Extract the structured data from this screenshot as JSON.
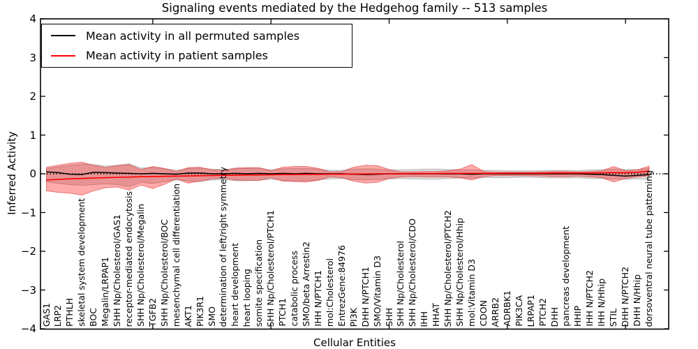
{
  "figure": {
    "title": "Signaling events mediated by the Hedgehog family -- 513 samples",
    "xlabel": "Cellular Entities",
    "ylabel": "Inferred Activity",
    "background": "#ffffff"
  },
  "legend": {
    "items": [
      {
        "label": "Mean activity in all permuted samples",
        "color": "#000000"
      },
      {
        "label": "Mean activity in patient samples",
        "color": "#ff0000"
      }
    ]
  },
  "chart_data": {
    "type": "line",
    "title": "Signaling events mediated by the Hedgehog family -- 513 samples",
    "xlabel": "Cellular Entities",
    "ylabel": "Inferred Activity",
    "ylim": [
      -4,
      4
    ],
    "grid": false,
    "legend_position": "upper left",
    "yticks": [
      {
        "value": 4,
        "label": "4"
      },
      {
        "value": 3,
        "label": "3"
      },
      {
        "value": 2,
        "label": "2"
      },
      {
        "value": 1,
        "label": "1"
      },
      {
        "value": 0,
        "label": "0"
      },
      {
        "value": -1,
        "label": "−1"
      },
      {
        "value": -2,
        "label": "−2"
      },
      {
        "value": -3,
        "label": "−3"
      },
      {
        "value": -4,
        "label": "−4"
      }
    ],
    "x_major_tick_indices": [
      9,
      19,
      29,
      39,
      49
    ],
    "categories": [
      "GAS1",
      "LRP2",
      "PTHLH",
      "skeletal system development",
      "BOC",
      "Megalin/LRPAP1",
      "SHH Np/Cholesterol/GAS1",
      "receptor-mediated endocytosis",
      "SHH Np/Cholesterol/Megalin",
      "TGFB2",
      "SHH Np/Cholesterol/BOC",
      "mesenchymal cell differentiation",
      "AKT1",
      "PIK3R1",
      "SMO",
      "determination of left/right symmetry",
      "heart development",
      "heart looping",
      "somite specification",
      "SHH Np/Cholesterol/PTCH1",
      "PTCH1",
      "catabolic process",
      "SMO/beta Arrestin2",
      "IHH N/PTCH1",
      "mol:Cholesterol",
      "EntrezGene:84976",
      "PI3K",
      "DHH N/PTCH1",
      "SMO/Vitamin D3",
      "SHH",
      "SHH Np/Cholesterol",
      "SHH Np/Cholesterol/CDO",
      "IHH",
      "HHAT",
      "SHH Np/Cholesterol/PTCH2",
      "SHH Np/Cholesterol/Hhip",
      "mol:Vitamin D3",
      "CDON",
      "ARRB2",
      "ADRBK1",
      "PIK3CA",
      "LRPAP1",
      "PTCH2",
      "DHH",
      "pancreas development",
      "HHIP",
      "IHH N/PTCH2",
      "IHH N/Hhip",
      "STIL",
      "DHH N/PTCH2",
      "DHH N/Hhip",
      "dorsoventral neural tube patterning"
    ],
    "series": [
      {
        "name": "Mean activity in all permuted samples",
        "color": "#000000",
        "values": [
          0.05,
          0.03,
          -0.01,
          -0.02,
          0.04,
          0.03,
          0.02,
          0.01,
          0.0,
          0.01,
          0.0,
          -0.01,
          0.02,
          0.02,
          0.0,
          0.0,
          0.01,
          0.0,
          0.01,
          0.0,
          0.01,
          0.0,
          0.01,
          0.0,
          0.0,
          0.0,
          -0.01,
          -0.02,
          -0.01,
          0.0,
          0.0,
          0.0,
          0.0,
          0.0,
          0.0,
          0.0,
          -0.01,
          0.0,
          0.0,
          0.0,
          0.0,
          0.0,
          0.0,
          0.0,
          0.0,
          0.0,
          -0.01,
          -0.02,
          -0.04,
          -0.06,
          -0.04,
          -0.02
        ]
      },
      {
        "name": "Mean activity in patient samples",
        "color": "#ff0000",
        "values": [
          -0.16,
          -0.145,
          -0.13,
          -0.12,
          -0.11,
          -0.1,
          -0.09,
          -0.085,
          -0.075,
          -0.07,
          -0.065,
          -0.06,
          -0.055,
          -0.05,
          -0.045,
          -0.04,
          -0.035,
          -0.03,
          -0.03,
          -0.025,
          -0.02,
          -0.02,
          -0.015,
          -0.015,
          -0.01,
          -0.01,
          -0.005,
          -0.005,
          0.0,
          0.0,
          0.0,
          0.005,
          0.005,
          0.005,
          0.01,
          0.01,
          0.01,
          0.01,
          0.01,
          0.015,
          0.015,
          0.015,
          0.015,
          0.02,
          0.02,
          0.02,
          0.02,
          0.025,
          0.03,
          0.03,
          0.04,
          0.07
        ]
      }
    ],
    "bands": [
      {
        "name": "permuted-range",
        "color": "rgba(0,0,0,0.14)",
        "edge": "rgba(0,0,0,0.22)",
        "upper": [
          0.13,
          0.18,
          0.22,
          0.25,
          0.24,
          0.2,
          0.22,
          0.26,
          0.15,
          0.16,
          0.13,
          0.09,
          0.14,
          0.15,
          0.12,
          0.11,
          0.13,
          0.14,
          0.14,
          0.1,
          0.13,
          0.14,
          0.14,
          0.12,
          0.09,
          0.09,
          0.12,
          0.13,
          0.12,
          0.1,
          0.1,
          0.11,
          0.12,
          0.12,
          0.11,
          0.1,
          0.1,
          0.09,
          0.09,
          0.08,
          0.08,
          0.08,
          0.08,
          0.09,
          0.09,
          0.08,
          0.1,
          0.1,
          0.12,
          0.11,
          0.11,
          0.14
        ],
        "lower": [
          -0.2,
          -0.25,
          -0.28,
          -0.3,
          -0.28,
          -0.26,
          -0.28,
          -0.33,
          -0.22,
          -0.25,
          -0.2,
          -0.16,
          -0.19,
          -0.2,
          -0.16,
          -0.15,
          -0.18,
          -0.18,
          -0.17,
          -0.14,
          -0.17,
          -0.18,
          -0.18,
          -0.16,
          -0.13,
          -0.12,
          -0.15,
          -0.16,
          -0.15,
          -0.13,
          -0.12,
          -0.13,
          -0.14,
          -0.14,
          -0.12,
          -0.11,
          -0.11,
          -0.1,
          -0.1,
          -0.1,
          -0.09,
          -0.09,
          -0.1,
          -0.1,
          -0.11,
          -0.1,
          -0.12,
          -0.12,
          -0.14,
          -0.14,
          -0.13,
          -0.15
        ]
      },
      {
        "name": "patient-range",
        "color": "rgba(255,0,0,0.33)",
        "edge": "rgba(220,40,40,0.55)",
        "upper": [
          0.17,
          0.22,
          0.27,
          0.3,
          0.22,
          0.16,
          0.21,
          0.24,
          0.11,
          0.19,
          0.14,
          0.06,
          0.16,
          0.17,
          0.1,
          0.09,
          0.15,
          0.16,
          0.16,
          0.08,
          0.17,
          0.19,
          0.19,
          0.14,
          0.05,
          0.06,
          0.17,
          0.22,
          0.21,
          0.11,
          0.05,
          0.05,
          0.06,
          0.06,
          0.08,
          0.12,
          0.24,
          0.06,
          0.04,
          0.04,
          0.04,
          0.04,
          0.05,
          0.06,
          0.06,
          0.05,
          0.06,
          0.08,
          0.19,
          0.08,
          0.1,
          0.2
        ],
        "lower": [
          -0.44,
          -0.48,
          -0.5,
          -0.55,
          -0.44,
          -0.36,
          -0.34,
          -0.42,
          -0.29,
          -0.38,
          -0.27,
          -0.13,
          -0.24,
          -0.19,
          -0.13,
          -0.11,
          -0.16,
          -0.17,
          -0.17,
          -0.1,
          -0.19,
          -0.2,
          -0.21,
          -0.17,
          -0.08,
          -0.1,
          -0.19,
          -0.24,
          -0.22,
          -0.12,
          -0.08,
          -0.07,
          -0.08,
          -0.08,
          -0.08,
          -0.1,
          -0.16,
          -0.07,
          -0.05,
          -0.05,
          -0.05,
          -0.05,
          -0.06,
          -0.07,
          -0.07,
          -0.06,
          -0.08,
          -0.1,
          -0.21,
          -0.12,
          -0.08,
          -0.05
        ]
      }
    ],
    "zero_line": {
      "y": 0,
      "style": "dotted",
      "color": "#000000"
    }
  }
}
